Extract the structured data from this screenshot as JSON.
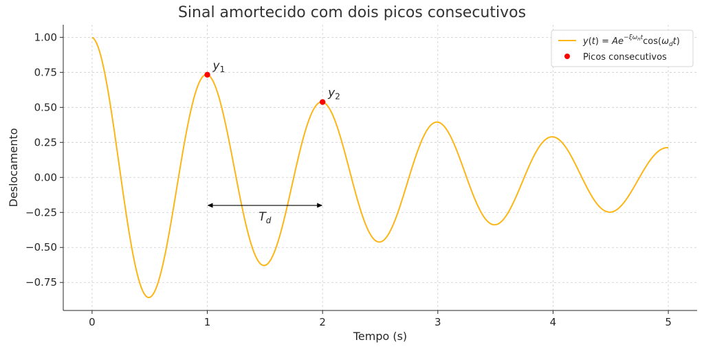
{
  "chart_data": {
    "type": "line",
    "title": "Sinal amortecido com dois picos consecutivos",
    "xlabel": "Tempo (s)",
    "ylabel": "Deslocamento",
    "xlim": [
      -0.25,
      5.25
    ],
    "ylim": [
      -0.95,
      1.09
    ],
    "x_ticks": [
      0,
      1,
      2,
      3,
      4,
      5
    ],
    "x_tick_labels": [
      "0",
      "1",
      "2",
      "3",
      "4",
      "5"
    ],
    "y_ticks": [
      1.0,
      0.75,
      0.5,
      0.25,
      0.0,
      -0.25,
      -0.5,
      -0.75
    ],
    "y_tick_labels": [
      "1.00",
      "0.75",
      "0.50",
      "0.25",
      "0.00",
      "−0.25",
      "−0.50",
      "−0.75"
    ],
    "grid": true,
    "legend_position": "top-right",
    "series": [
      {
        "name": "y(t) = Ae^{-ξωₙt} cos(ω_d t)",
        "color": "#FDB515",
        "function": {
          "A": 1.0,
          "decay_rate": 0.31,
          "angular_frequency": 6.2832,
          "t_start": 0,
          "t_end": 5
        }
      },
      {
        "name": "Picos consecutivos",
        "color": "#FF0000",
        "type": "scatter",
        "x": [
          1.0,
          2.0
        ],
        "y": [
          0.733,
          0.538
        ]
      }
    ],
    "annotations": [
      {
        "label": "y",
        "subscript": "1",
        "x": 1.0,
        "y": 0.733
      },
      {
        "label": "y",
        "subscript": "2",
        "x": 2.0,
        "y": 0.538
      },
      {
        "type": "double-arrow",
        "label": "T",
        "subscript": "d",
        "x_start": 1.0,
        "x_end": 2.0,
        "y": -0.2
      }
    ],
    "colors": {
      "axis": "#262626",
      "grid": "#cccccc",
      "text": "#262626",
      "title": "#333333"
    }
  }
}
